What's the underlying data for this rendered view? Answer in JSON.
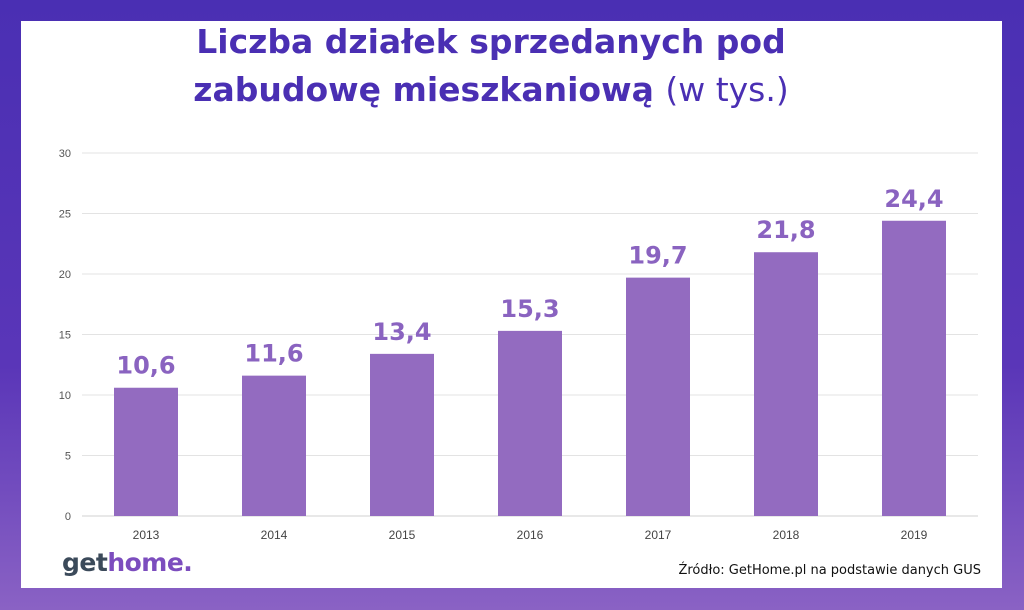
{
  "colors": {
    "bar": "#936bc0",
    "title": "#4a2fb3",
    "label": "#8a63c0",
    "grid": "#e3e3e3",
    "axis": "#d0d0d0"
  },
  "header": {
    "title_bold_1": "Liczba działek sprzedanych pod",
    "title_bold_2": "zabudowę mieszkaniową",
    "title_light": "(w tys.)"
  },
  "chart_data": {
    "type": "bar",
    "title": "Liczba działek sprzedanych pod zabudowę mieszkaniową (w tys.)",
    "categories": [
      "2013",
      "2014",
      "2015",
      "2016",
      "2017",
      "2018",
      "2019"
    ],
    "values": [
      10.6,
      11.6,
      13.4,
      15.3,
      19.7,
      21.8,
      24.4
    ],
    "value_labels": [
      "10,6",
      "11,6",
      "13,4",
      "15,3",
      "19,7",
      "21,8",
      "24,4"
    ],
    "ylim": [
      0,
      30
    ],
    "yticks": [
      0,
      5,
      10,
      15,
      20,
      25,
      30
    ],
    "grid": true,
    "xlabel": "",
    "ylabel": ""
  },
  "footer": {
    "logo_part1": "get",
    "logo_part2": "home.",
    "source": "Źródło: GetHome.pl na podstawie danych GUS"
  }
}
